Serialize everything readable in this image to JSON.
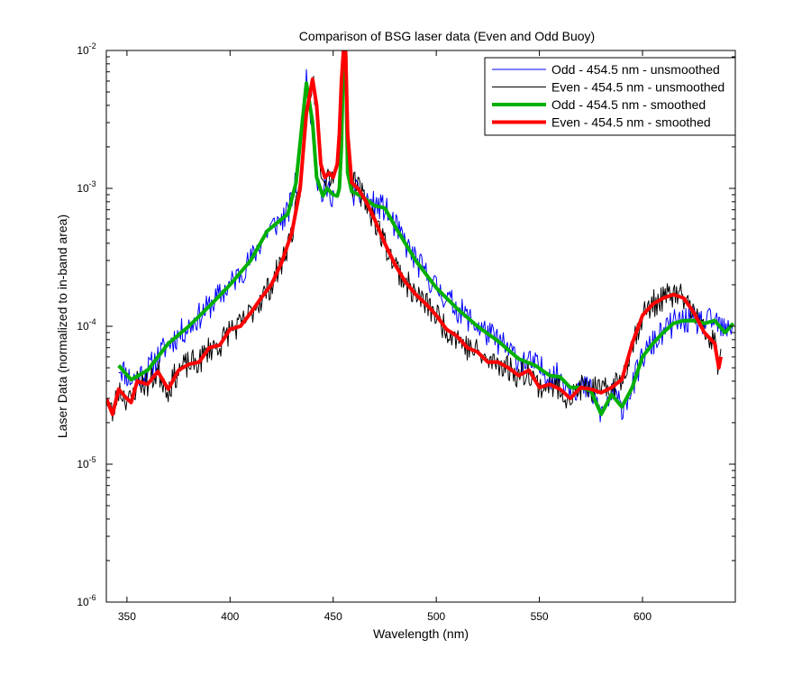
{
  "chart_data": {
    "type": "line",
    "title": "Comparison of BSG laser data (Even and Odd Buoy)",
    "xlabel": "Wavelength (nm)",
    "ylabel": "Laser Data (normalized to in-band area)",
    "xlim": [
      340,
      645
    ],
    "ylim": [
      1e-06,
      0.01
    ],
    "yscale": "log",
    "grid": false,
    "legend_position": "top-right",
    "x_ticks": [
      350,
      400,
      450,
      500,
      550,
      600
    ],
    "y_ticks": [
      {
        "value": 1e-06,
        "base": "10",
        "exp": "-6"
      },
      {
        "value": 1e-05,
        "base": "10",
        "exp": "-5"
      },
      {
        "value": 0.0001,
        "base": "10",
        "exp": "-4"
      },
      {
        "value": 0.001,
        "base": "10",
        "exp": "-3"
      },
      {
        "value": 0.01,
        "base": "10",
        "exp": "-2"
      }
    ],
    "series": [
      {
        "name": "Odd - 454.5 nm - unsmoothed",
        "color": "#0000ff",
        "width": 1,
        "noise": true,
        "seed": 11,
        "x": [
          346,
          352,
          360,
          370,
          380,
          390,
          400,
          410,
          418,
          422,
          428,
          432,
          435,
          437,
          440,
          442,
          445,
          447,
          450,
          452,
          453,
          454,
          455,
          456,
          457,
          459,
          461,
          465,
          470,
          475,
          480,
          490,
          500,
          510,
          520,
          530,
          540,
          548,
          555,
          560,
          565,
          570,
          575,
          580,
          585,
          590,
          595,
          600,
          605,
          610,
          615,
          620,
          625,
          630,
          635,
          640,
          644
        ],
        "y": [
          5.2e-05,
          4.1e-05,
          4.8e-05,
          7.5e-05,
          0.0001,
          0.00014,
          0.0002,
          0.0003,
          0.00049,
          0.00055,
          0.00065,
          0.0011,
          0.003,
          0.0058,
          0.003,
          0.0012,
          0.00088,
          0.001,
          0.0009,
          0.00088,
          0.001,
          0.002,
          0.01,
          0.01,
          0.0013,
          0.00095,
          0.00092,
          0.00085,
          0.00075,
          0.00072,
          0.00053,
          0.0003,
          0.00019,
          0.000135,
          0.0001,
          7.8e-05,
          5.8e-05,
          5.2e-05,
          4.4e-05,
          4.3e-05,
          3.6e-05,
          3.6e-05,
          3.4e-05,
          2.3e-05,
          3.2e-05,
          2.6e-05,
          3.6e-05,
          6e-05,
          7.5e-05,
          9e-05,
          0.000105,
          0.00011,
          0.00011,
          0.000105,
          0.00011,
          9e-05,
          0.000105
        ]
      },
      {
        "name": "Even - 454.5 nm - unsmoothed",
        "color": "#000000",
        "width": 1,
        "noise": true,
        "seed": 23,
        "x": [
          340,
          343,
          346,
          349,
          352,
          355,
          360,
          365,
          370,
          375,
          380,
          385,
          390,
          395,
          400,
          405,
          410,
          415,
          420,
          425,
          430,
          434,
          437,
          440,
          442,
          444,
          446,
          448,
          450,
          452,
          453,
          454,
          455,
          456,
          457,
          459,
          462,
          466,
          470,
          475,
          480,
          485,
          490,
          495,
          500,
          505,
          510,
          515,
          520,
          525,
          530,
          535,
          540,
          545,
          550,
          555,
          560,
          565,
          570,
          575,
          580,
          585,
          590,
          595,
          600,
          605,
          610,
          615,
          620,
          625,
          630,
          635,
          637,
          638
        ],
        "y": [
          3e-05,
          2.3e-05,
          3.5e-05,
          3.1e-05,
          2.8e-05,
          4e-05,
          3.8e-05,
          4.7e-05,
          3.5e-05,
          4.8e-05,
          5.3e-05,
          5.5e-05,
          7e-05,
          7.3e-05,
          9.5e-05,
          0.0001,
          0.000125,
          0.00016,
          0.0002,
          0.00029,
          0.00048,
          0.001,
          0.0035,
          0.0062,
          0.004,
          0.0015,
          0.0012,
          0.0013,
          0.0012,
          0.0015,
          0.0025,
          0.006,
          0.01,
          0.01,
          0.0025,
          0.0011,
          0.001,
          0.0008,
          0.0006,
          0.0004,
          0.00028,
          0.00021,
          0.00017,
          0.000145,
          0.00012,
          9.5e-05,
          8.5e-05,
          7e-05,
          6.5e-05,
          5.5e-05,
          5.5e-05,
          5e-05,
          4.4e-05,
          4.8e-05,
          3.6e-05,
          3.8e-05,
          3.5e-05,
          3e-05,
          3.6e-05,
          3.5e-05,
          3.3e-05,
          3.6e-05,
          4.1e-05,
          7.5e-05,
          0.00012,
          0.000145,
          0.00016,
          0.00017,
          0.00016,
          0.000125,
          9e-05,
          7.5e-05,
          5e-05,
          6e-05
        ]
      },
      {
        "name": "Odd - 454.5 nm - smoothed",
        "color": "#00b000",
        "width": 4,
        "noise": false,
        "x": [
          346,
          352,
          360,
          370,
          380,
          390,
          400,
          410,
          418,
          422,
          428,
          432,
          435,
          437,
          440,
          442,
          445,
          447,
          450,
          452,
          453,
          454,
          455,
          456,
          457,
          459,
          461,
          465,
          470,
          475,
          480,
          490,
          500,
          510,
          520,
          530,
          540,
          548,
          555,
          560,
          565,
          570,
          575,
          580,
          585,
          590,
          595,
          600,
          605,
          610,
          615,
          620,
          625,
          630,
          635,
          640,
          644
        ],
        "y": [
          5.2e-05,
          4.1e-05,
          4.8e-05,
          7.5e-05,
          0.0001,
          0.00014,
          0.0002,
          0.0003,
          0.00049,
          0.00055,
          0.00065,
          0.0011,
          0.003,
          0.0058,
          0.003,
          0.0012,
          0.00088,
          0.001,
          0.0009,
          0.00088,
          0.001,
          0.002,
          0.01,
          0.01,
          0.0013,
          0.00095,
          0.00092,
          0.00085,
          0.00075,
          0.00072,
          0.00053,
          0.0003,
          0.00019,
          0.000135,
          0.0001,
          7.8e-05,
          5.8e-05,
          5.2e-05,
          4.4e-05,
          4.3e-05,
          3.6e-05,
          3.6e-05,
          3.4e-05,
          2.3e-05,
          3.2e-05,
          2.6e-05,
          3.6e-05,
          6e-05,
          7.5e-05,
          9e-05,
          0.000105,
          0.00011,
          0.00011,
          0.000105,
          0.00011,
          9e-05,
          0.000105
        ]
      },
      {
        "name": "Even - 454.5 nm - smoothed",
        "color": "#ff0000",
        "width": 4,
        "noise": false,
        "x": [
          340,
          343,
          346,
          349,
          352,
          355,
          360,
          365,
          370,
          375,
          380,
          385,
          390,
          395,
          400,
          405,
          410,
          415,
          420,
          425,
          430,
          434,
          437,
          440,
          442,
          444,
          446,
          448,
          450,
          452,
          453,
          454,
          455,
          456,
          457,
          459,
          462,
          466,
          470,
          475,
          480,
          485,
          490,
          495,
          500,
          505,
          510,
          515,
          520,
          525,
          530,
          535,
          540,
          545,
          550,
          555,
          560,
          565,
          570,
          575,
          580,
          585,
          590,
          595,
          600,
          605,
          610,
          615,
          620,
          625,
          630,
          635,
          637,
          638
        ],
        "y": [
          3e-05,
          2.3e-05,
          3.5e-05,
          3.1e-05,
          2.8e-05,
          4e-05,
          3.8e-05,
          4.7e-05,
          3.5e-05,
          4.8e-05,
          5.3e-05,
          5.5e-05,
          7e-05,
          7.3e-05,
          9.5e-05,
          0.0001,
          0.000125,
          0.00016,
          0.0002,
          0.00029,
          0.00048,
          0.001,
          0.0035,
          0.0062,
          0.004,
          0.0015,
          0.0012,
          0.0013,
          0.0012,
          0.0015,
          0.0025,
          0.006,
          0.01,
          0.01,
          0.0025,
          0.0011,
          0.001,
          0.0008,
          0.0006,
          0.0004,
          0.00028,
          0.00021,
          0.00017,
          0.000145,
          0.00012,
          9.5e-05,
          8.5e-05,
          7e-05,
          6.5e-05,
          5.5e-05,
          5.5e-05,
          5e-05,
          4.4e-05,
          4.8e-05,
          3.6e-05,
          3.8e-05,
          3.5e-05,
          3e-05,
          3.6e-05,
          3.5e-05,
          3.3e-05,
          3.6e-05,
          4.1e-05,
          7.5e-05,
          0.00012,
          0.000145,
          0.00016,
          0.00017,
          0.00016,
          0.000125,
          9e-05,
          7.5e-05,
          5e-05,
          6e-05
        ]
      }
    ]
  }
}
